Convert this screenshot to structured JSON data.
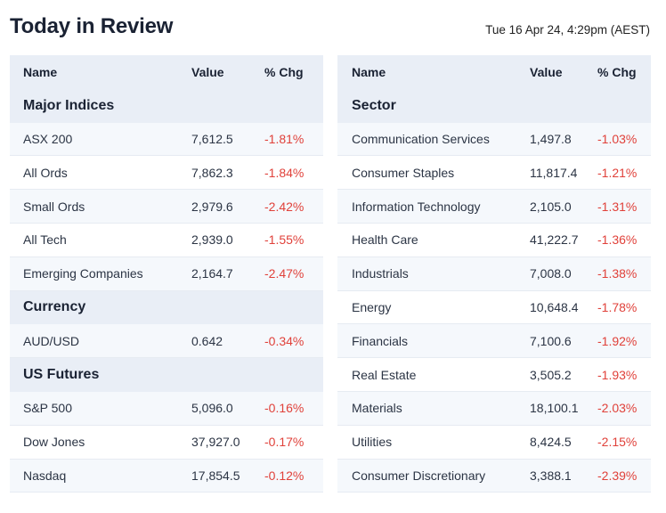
{
  "header": {
    "title": "Today in Review",
    "timestamp": "Tue 16 Apr 24, 4:29pm (AEST)"
  },
  "colors": {
    "header_bg": "#e9eef6",
    "row_alt_bg": "#f5f8fc",
    "negative": "#e0413a"
  },
  "left_table": {
    "columns": {
      "name": "Name",
      "value": "Value",
      "chg": "% Chg"
    },
    "groups": [
      {
        "title": "Major Indices",
        "rows": [
          {
            "name": "ASX 200",
            "value": "7,612.5",
            "chg": "-1.81%"
          },
          {
            "name": "All Ords",
            "value": "7,862.3",
            "chg": "-1.84%"
          },
          {
            "name": "Small Ords",
            "value": "2,979.6",
            "chg": "-2.42%"
          },
          {
            "name": "All Tech",
            "value": "2,939.0",
            "chg": "-1.55%"
          },
          {
            "name": "Emerging Companies",
            "value": "2,164.7",
            "chg": "-2.47%"
          }
        ]
      },
      {
        "title": "Currency",
        "rows": [
          {
            "name": "AUD/USD",
            "value": "0.642",
            "chg": "-0.34%"
          }
        ]
      },
      {
        "title": "US Futures",
        "rows": [
          {
            "name": "S&P 500",
            "value": "5,096.0",
            "chg": "-0.16%"
          },
          {
            "name": "Dow Jones",
            "value": "37,927.0",
            "chg": "-0.17%"
          },
          {
            "name": "Nasdaq",
            "value": "17,854.5",
            "chg": "-0.12%"
          }
        ]
      }
    ]
  },
  "right_table": {
    "columns": {
      "name": "Name",
      "value": "Value",
      "chg": "% Chg"
    },
    "group_title": "Sector",
    "rows": [
      {
        "name": "Communication Services",
        "value": "1,497.8",
        "chg": "-1.03%"
      },
      {
        "name": "Consumer Staples",
        "value": "11,817.4",
        "chg": "-1.21%"
      },
      {
        "name": "Information Technology",
        "value": "2,105.0",
        "chg": "-1.31%"
      },
      {
        "name": "Health Care",
        "value": "41,222.7",
        "chg": "-1.36%"
      },
      {
        "name": "Industrials",
        "value": "7,008.0",
        "chg": "-1.38%"
      },
      {
        "name": "Energy",
        "value": "10,648.4",
        "chg": "-1.78%"
      },
      {
        "name": "Financials",
        "value": "7,100.6",
        "chg": "-1.92%"
      },
      {
        "name": "Real Estate",
        "value": "3,505.2",
        "chg": "-1.93%"
      },
      {
        "name": "Materials",
        "value": "18,100.1",
        "chg": "-2.03%"
      },
      {
        "name": "Utilities",
        "value": "8,424.5",
        "chg": "-2.15%"
      },
      {
        "name": "Consumer Discretionary",
        "value": "3,388.1",
        "chg": "-2.39%"
      }
    ]
  }
}
